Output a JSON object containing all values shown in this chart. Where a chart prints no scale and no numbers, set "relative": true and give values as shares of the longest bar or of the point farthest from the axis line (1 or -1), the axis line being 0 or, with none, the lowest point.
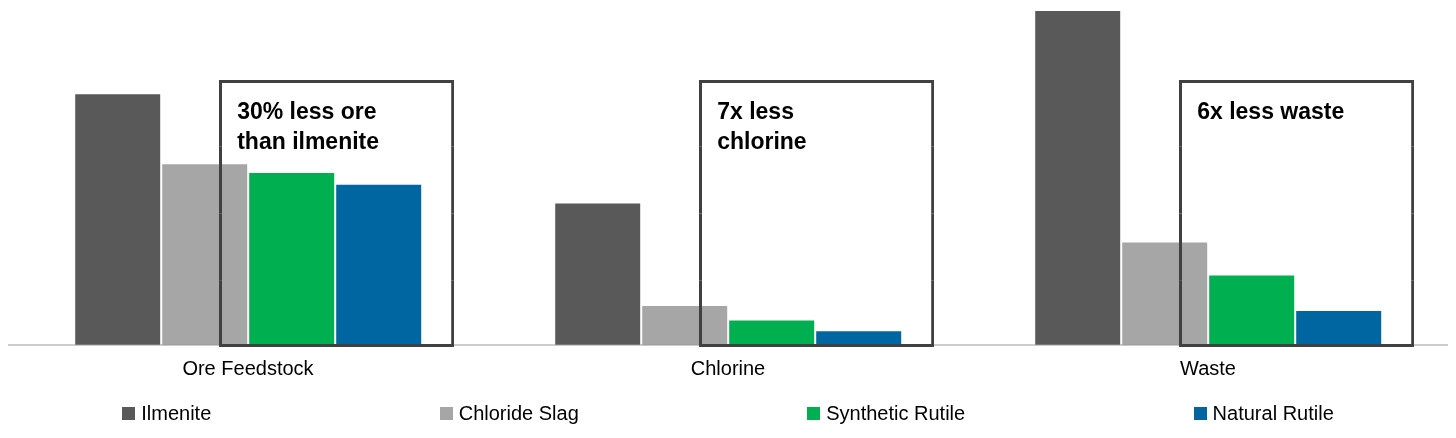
{
  "chart_data": {
    "type": "bar",
    "relative": true,
    "categories": [
      "Ore Feedstock",
      "Chlorine",
      "Waste"
    ],
    "series": [
      {
        "name": "Ilmenite",
        "color": "#595959",
        "values": [
          0.751,
          0.424,
          1
        ]
      },
      {
        "name": "Chloride Slag",
        "color": "#a6a6a6",
        "values": [
          0.541,
          0.117,
          0.307
        ]
      },
      {
        "name": "Synthetic Rutile",
        "color": "#00b050",
        "values": [
          0.515,
          0.073,
          0.208
        ]
      },
      {
        "name": "Natural Rutile",
        "color": "#0066a1",
        "values": [
          0.48,
          0.041,
          0.102
        ]
      }
    ],
    "annotations": [
      "30% less ore than ilmenite",
      "7x less chlorine",
      "6x less waste"
    ],
    "legend": "bottom",
    "grid": false
  }
}
